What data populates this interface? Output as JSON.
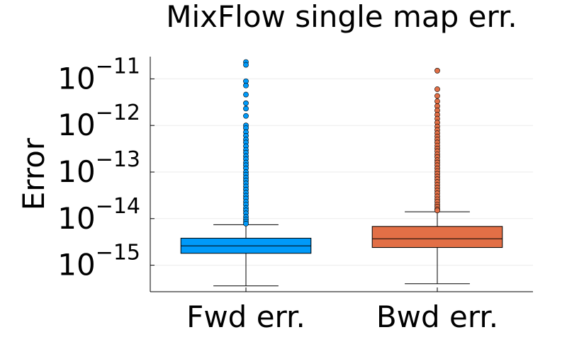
{
  "chart_data": {
    "type": "box",
    "title": "MixFlow single map err.",
    "xlabel": "",
    "ylabel": "Error",
    "yscale": "log10",
    "ylim": [
      2.7e-16,
      3e-11
    ],
    "grid": true,
    "legend": "none",
    "y_ticks": [
      {
        "value": 1e-15,
        "base": "10",
        "exp": "−15"
      },
      {
        "value": 1e-14,
        "base": "10",
        "exp": "−14"
      },
      {
        "value": 1e-13,
        "base": "10",
        "exp": "−13"
      },
      {
        "value": 1e-12,
        "base": "10",
        "exp": "−12"
      },
      {
        "value": 1e-11,
        "base": "10",
        "exp": "−11"
      }
    ],
    "categories": [
      "Fwd err.",
      "Bwd err."
    ],
    "series": [
      {
        "color": "#009af9",
        "whisker_low": 3.6e-16,
        "q1": 1.8e-15,
        "median": 2.6e-15,
        "q3": 3.8e-15,
        "whisker_high": 7.4e-15,
        "outliers": [
          2.3e-11,
          2e-11,
          8.9e-12,
          7.2e-12,
          4.6e-12,
          3e-12,
          2.3e-12,
          1.6e-12,
          1e-12,
          8.8e-13,
          7.2e-13,
          6e-13,
          5e-13,
          4.3e-13,
          3.6e-13,
          3e-13,
          2.6e-13,
          2.2e-13,
          1.9e-13,
          1.6e-13,
          1.4e-13,
          1.2e-13,
          1e-13,
          8.8e-14,
          7.6e-14,
          6.6e-14,
          5.7e-14,
          4.9e-14,
          4.2e-14,
          3.6e-14,
          3.1e-14,
          2.7e-14,
          2.3e-14,
          2e-14,
          1.7e-14,
          1.5e-14,
          1.3e-14,
          1.1e-14,
          9.6e-15,
          8.6e-15,
          7.8e-15
        ]
      },
      {
        "color": "#e26f46",
        "whisker_low": 4e-16,
        "q1": 2.4e-15,
        "median": 3.7e-15,
        "q3": 6.8e-15,
        "whisker_high": 1.4e-14,
        "outliers": [
          1.5e-11,
          6e-12,
          4.3e-12,
          3.3e-12,
          2.6e-12,
          2.1e-12,
          1.7e-12,
          1.4e-12,
          1.15e-12,
          9.5e-13,
          8e-13,
          6.8e-13,
          5.8e-13,
          5e-13,
          4.3e-13,
          3.7e-13,
          3.2e-13,
          2.8e-13,
          2.4e-13,
          2.1e-13,
          1.8e-13,
          1.6e-13,
          1.4e-13,
          1.2e-13,
          1.05e-13,
          9.2e-14,
          8e-14,
          7e-14,
          6.1e-14,
          5.3e-14,
          4.6e-14,
          4e-14,
          3.5e-14,
          3e-14,
          2.6e-14,
          2.3e-14,
          2e-14,
          1.8e-14,
          1.6e-14,
          1.5e-14
        ]
      }
    ]
  }
}
